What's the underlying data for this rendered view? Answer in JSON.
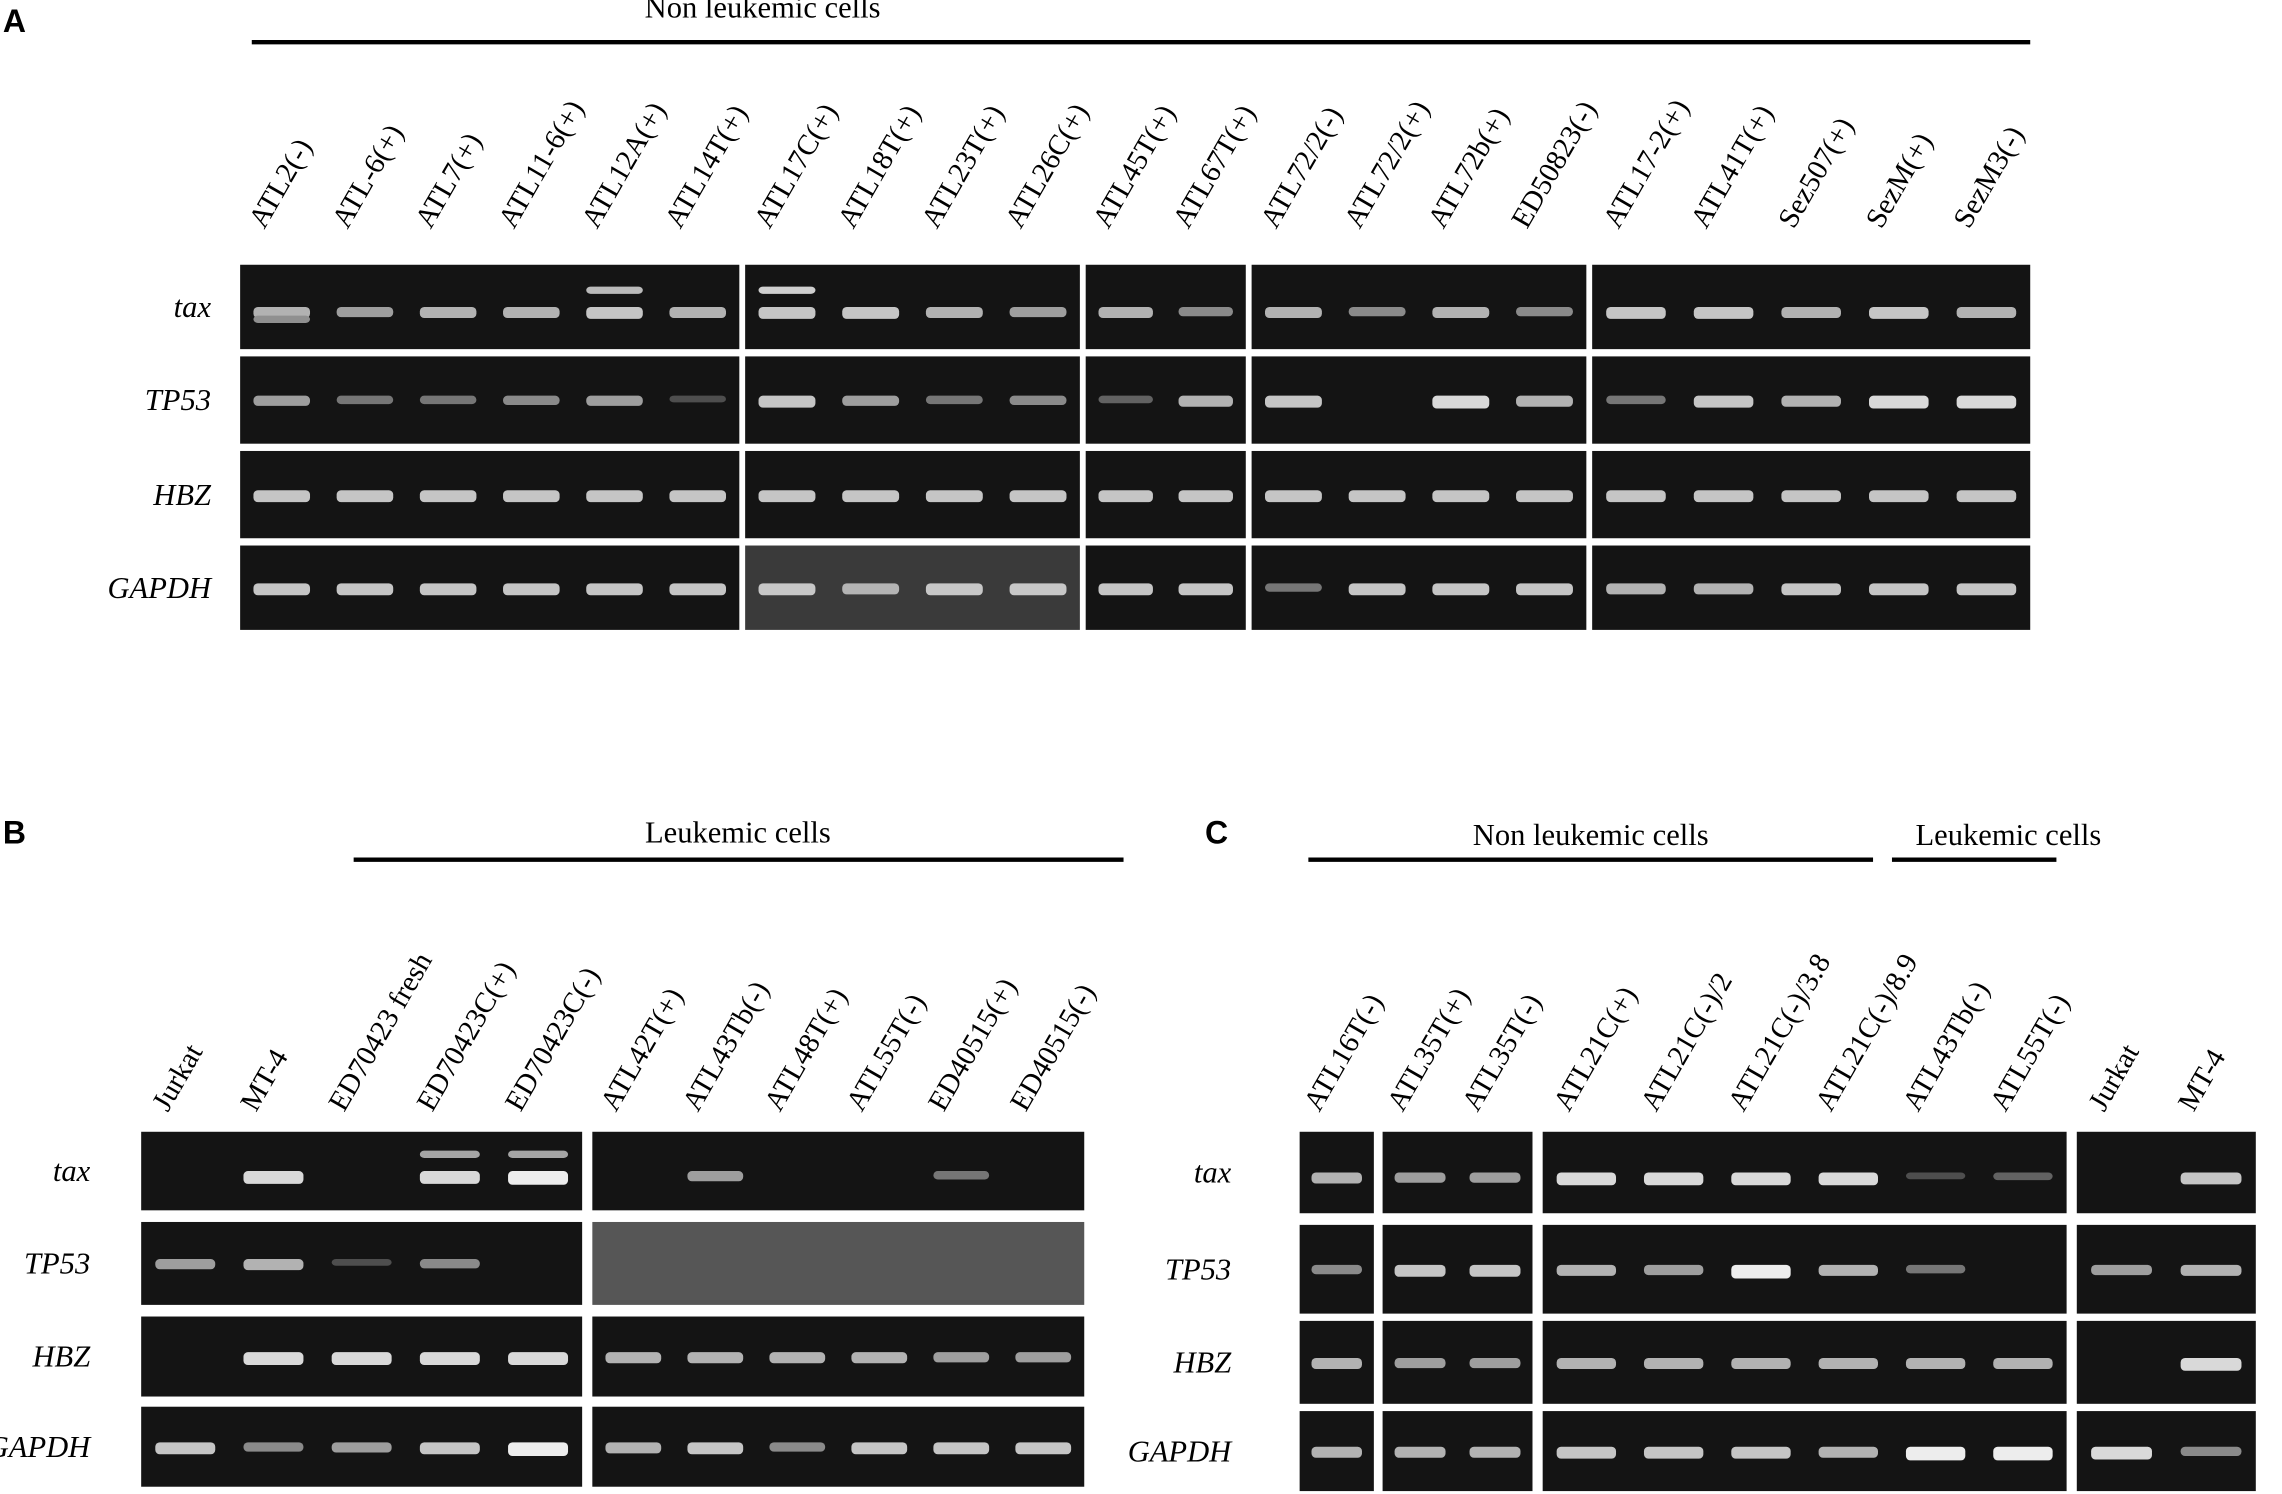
{
  "panels": [
    {
      "label": "A",
      "groups": [
        "Non leukemic cells"
      ],
      "lanes": [
        "ATL2(-)",
        "ATL-6(+)",
        "ATL7(+)",
        "ATL11-6(+)",
        "ATL12A(+)",
        "ATL14T(+)",
        "ATL17C(+)",
        "ATL18T(+)",
        "ATL23T(+)",
        "ATL26C(+)",
        "ATL45T(+)",
        "ATL67T(+)",
        "ATL72/2(-)",
        "ATL72/2(+)",
        "ATL72b(+)",
        "ED50823(-)",
        "ATL17-2(+)",
        "ATL41T(+)",
        "Sez507(+)",
        "SezM(+)",
        "SezM3(-)"
      ],
      "rows": [
        "tax",
        "TP53",
        "HBZ",
        "GAPDH"
      ]
    },
    {
      "label": "B",
      "groups": [
        "Leukemic cells"
      ],
      "lanes": [
        "Jurkat",
        "MT-4",
        "ED70423 fresh",
        "ED70423C(+)",
        "ED70423C(-)",
        "ATL42T(+)",
        "ATL43Tb(-)",
        "ATL48T(+)",
        "ATL55T(-)",
        "ED40515(+)",
        "ED40515(-)"
      ],
      "rows": [
        "tax",
        "TP53",
        "HBZ",
        "GAPDH"
      ]
    },
    {
      "label": "C",
      "groups": [
        "Non leukemic cells",
        "Leukemic cells"
      ],
      "lanes": [
        "ATL16T(-)",
        "ATL35T(+)",
        "ATL35T(-)",
        "ATL21C(+)",
        "ATL21C(-)/2",
        "ATL21C(-)/3.8",
        "ATL21C(-)/8.9",
        "ATL43Tb(-)",
        "ATL55T(-)",
        "Jurkat",
        "MT-4"
      ],
      "rows": [
        "tax",
        "TP53",
        "HBZ",
        "GAPDH"
      ]
    }
  ]
}
